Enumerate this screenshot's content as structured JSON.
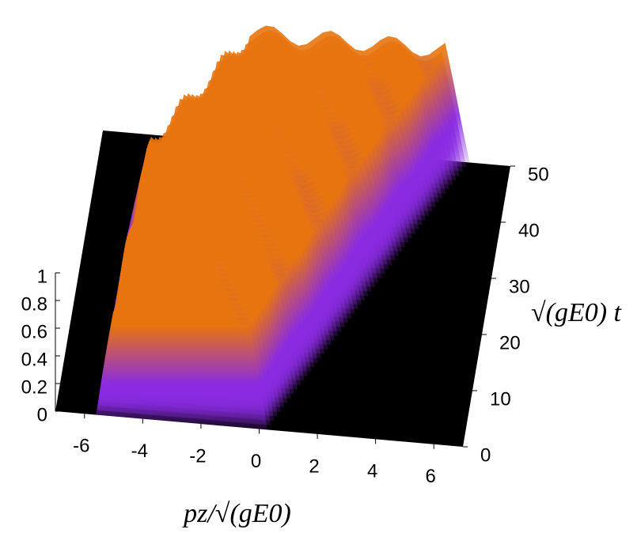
{
  "chart_data": {
    "type": "surface3d",
    "x_label": "pz/√(gE0)",
    "y_label": "√(gE0) t",
    "xlim": [
      -7,
      7
    ],
    "xticks": [
      -6,
      -4,
      -2,
      0,
      2,
      4,
      6
    ],
    "ylim": [
      0,
      50
    ],
    "yticks": [
      0,
      10,
      20,
      30,
      40,
      50
    ],
    "zlim": [
      0,
      1
    ],
    "zticks": [
      0,
      0.2,
      0.4,
      0.6,
      0.8,
      1
    ],
    "floor_color": "#000000",
    "colors": [
      "#8a2be2",
      "#e8740f"
    ]
  }
}
